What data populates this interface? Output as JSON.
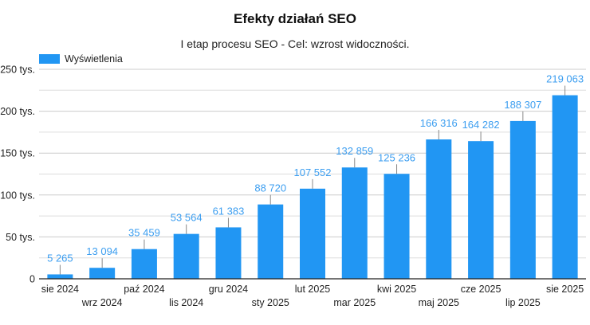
{
  "chart_data": {
    "type": "bar",
    "title": "Efekty działań SEO",
    "subtitle": "I etap procesu SEO - Cel: wzrost widoczności.",
    "legend": {
      "label": "Wyświetlenia",
      "position": "top-left"
    },
    "series_name": "Wyświetlenia",
    "color": "#2196F3",
    "label_color": "#3C9EF0",
    "categories": [
      "sie 2024",
      "wrz 2024",
      "paź 2024",
      "lis 2024",
      "gru 2024",
      "sty 2025",
      "lut 2025",
      "mar 2025",
      "kwi 2025",
      "maj 2025",
      "cze 2025",
      "lip 2025",
      "sie 2025"
    ],
    "values": [
      5265,
      13094,
      35459,
      53564,
      61383,
      88720,
      107552,
      132859,
      125236,
      166316,
      164282,
      188307,
      219063
    ],
    "data_labels": [
      "5 265",
      "13 094",
      "35 459",
      "53 564",
      "61 383",
      "88 720",
      "107 552",
      "132 859",
      "125 236",
      "166 316",
      "164 282",
      "188 307",
      "219 063"
    ],
    "ylim": [
      0,
      250000
    ],
    "yticks": [
      0,
      50000,
      100000,
      150000,
      200000,
      250000
    ],
    "ytick_labels": [
      "0",
      "50 tys.",
      "100 tys.",
      "150 tys.",
      "200 tys.",
      "250 tys."
    ],
    "minor_gridlines": [
      25000,
      75000,
      125000,
      175000,
      225000
    ],
    "grid": true,
    "xlabel": "",
    "ylabel": ""
  }
}
